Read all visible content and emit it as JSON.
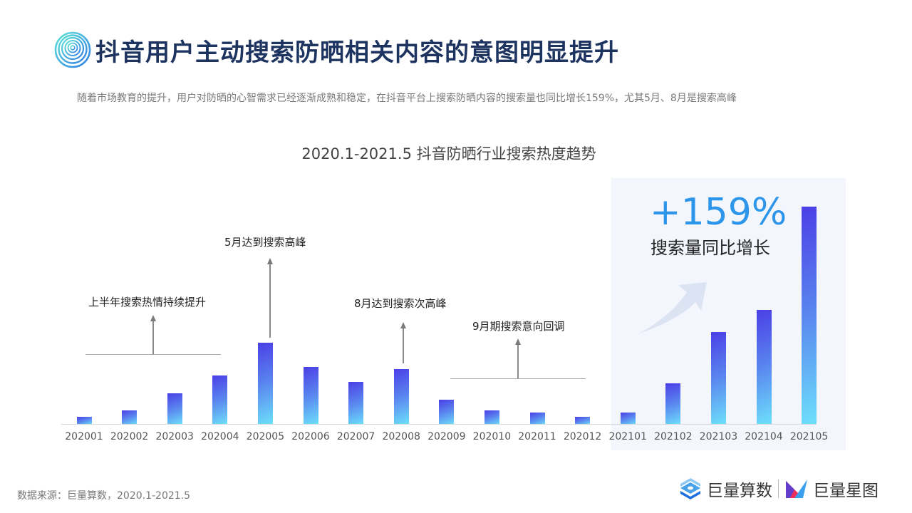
{
  "header": {
    "title": "抖音用户主动搜索防晒相关内容的意图明显提升",
    "logo_icon": "concentric-circles-icon",
    "subtitle": "随着市场教育的提升，用户对防晒的心智需求已经逐渐成熟和稳定，在抖音平台上搜索防晒内容的搜索量也同比增长159%，尤其5月、8月是搜索高峰"
  },
  "highlight": {
    "percent": "+159%",
    "label": "搜索量同比增长",
    "arrow_icon": "curved-up-arrow-icon"
  },
  "annotations": [
    {
      "text": "上半年搜索热情持续提升"
    },
    {
      "text": "5月达到搜索高峰"
    },
    {
      "text": "8月达到搜索次高峰"
    },
    {
      "text": "9月期搜索意向回调"
    }
  ],
  "footer": {
    "source": "数据来源：巨量算数，2020.1-2021.5",
    "brands": [
      {
        "name": "巨量算数",
        "icon": "juliang-suanshu-logo-icon"
      },
      {
        "name": "巨量星图",
        "icon": "juliang-xingtu-logo-icon"
      }
    ]
  },
  "colors": {
    "title": "#1e3460",
    "bar_gradient_top": "#4b3fe6",
    "bar_gradient_bottom": "#6de0fb",
    "highlight_percent": "#2e96ea",
    "highlight_panel_bg": "#f3f6fc"
  },
  "chart_data": {
    "type": "bar",
    "title": "2020.1-2021.5 抖音防晒行业搜索热度趋势",
    "xlabel": "",
    "ylabel": "",
    "categories": [
      "202001",
      "202002",
      "202003",
      "202004",
      "202005",
      "202006",
      "202007",
      "202008",
      "202009",
      "202010",
      "202011",
      "202012",
      "202101",
      "202102",
      "202103",
      "202104",
      "202105"
    ],
    "values": [
      3.5,
      6.5,
      14.5,
      22.5,
      37.5,
      26.5,
      19.5,
      25.5,
      11.5,
      6.5,
      5.5,
      3.5,
      5.5,
      19,
      42.5,
      52.5,
      100
    ],
    "ylim": [
      0,
      100
    ],
    "value_unit": "relative search index (estimated, 202105 = 100)",
    "grid": false,
    "legend": null,
    "highlighted_range": [
      "202101",
      "202105"
    ],
    "annotations": [
      {
        "text": "上半年搜索热情持续提升",
        "span": [
          "202001",
          "202003"
        ]
      },
      {
        "text": "5月达到搜索高峰",
        "at": "202005"
      },
      {
        "text": "8月达到搜索次高峰",
        "at": "202008"
      },
      {
        "text": "9月期搜索意向回调",
        "span": [
          "202009",
          "202012"
        ]
      },
      {
        "text": "+159% 搜索量同比增长",
        "span": [
          "202101",
          "202105"
        ]
      }
    ]
  }
}
